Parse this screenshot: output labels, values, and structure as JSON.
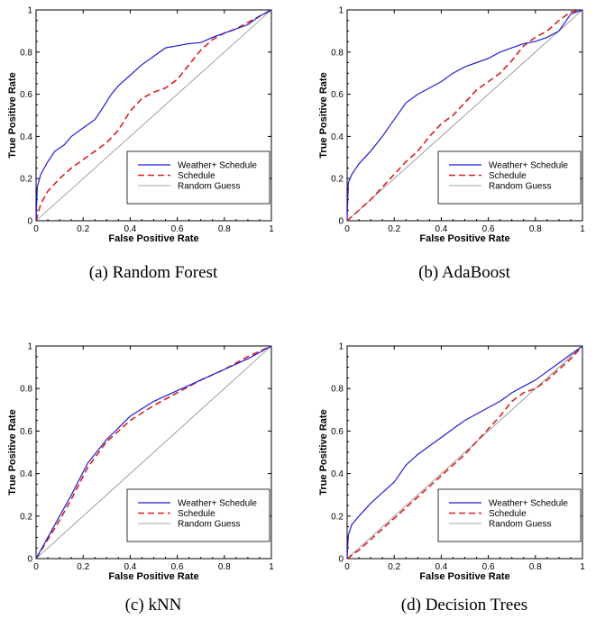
{
  "chart_data": [
    {
      "type": "line",
      "caption": "(a) Random Forest",
      "xlabel": "False Positive Rate",
      "ylabel": "True Positive Rate",
      "xlim": [
        0,
        1
      ],
      "ylim": [
        0,
        1
      ],
      "xticks": [
        "0",
        "0.2",
        "0.4",
        "0.6",
        "0.8",
        "1"
      ],
      "yticks": [
        "0",
        "0.2",
        "0.4",
        "0.6",
        "0.8",
        "1"
      ],
      "grid": false,
      "legend_position": "bottom-right",
      "series": [
        {
          "name": "Weather+ Schedule",
          "color": "#1f1fd6",
          "dash": "solid",
          "x": [
            0,
            0.005,
            0.02,
            0.05,
            0.08,
            0.12,
            0.15,
            0.2,
            0.25,
            0.28,
            0.32,
            0.35,
            0.4,
            0.45,
            0.5,
            0.55,
            0.6,
            0.65,
            0.7,
            0.75,
            0.8,
            0.85,
            0.9,
            0.95,
            1
          ],
          "y": [
            0,
            0.16,
            0.22,
            0.28,
            0.33,
            0.36,
            0.4,
            0.44,
            0.48,
            0.53,
            0.6,
            0.64,
            0.69,
            0.74,
            0.78,
            0.82,
            0.83,
            0.84,
            0.845,
            0.87,
            0.89,
            0.91,
            0.93,
            0.97,
            1
          ]
        },
        {
          "name": "Schedule",
          "color": "#d62020",
          "dash": "dashed",
          "x": [
            0,
            0.02,
            0.05,
            0.1,
            0.15,
            0.2,
            0.25,
            0.3,
            0.35,
            0.4,
            0.45,
            0.5,
            0.55,
            0.6,
            0.65,
            0.7,
            0.75,
            0.8,
            0.85,
            0.9,
            0.95,
            1
          ],
          "y": [
            0,
            0.08,
            0.14,
            0.2,
            0.25,
            0.29,
            0.33,
            0.37,
            0.43,
            0.52,
            0.58,
            0.61,
            0.63,
            0.67,
            0.74,
            0.81,
            0.86,
            0.89,
            0.91,
            0.94,
            0.97,
            1
          ]
        },
        {
          "name": "Random Guess",
          "color": "#888888",
          "dash": "solid",
          "x": [
            0,
            1
          ],
          "y": [
            0,
            1
          ]
        }
      ]
    },
    {
      "type": "line",
      "caption": "(b) AdaBoost",
      "xlabel": "False Positive Rate",
      "ylabel": "True Positive Rate",
      "xlim": [
        0,
        1
      ],
      "ylim": [
        0,
        1
      ],
      "xticks": [
        "0",
        "0.2",
        "0.4",
        "0.6",
        "0.8",
        "1"
      ],
      "yticks": [
        "0",
        "0.2",
        "0.4",
        "0.6",
        "0.8",
        "1"
      ],
      "grid": false,
      "legend_position": "bottom-right",
      "series": [
        {
          "name": "Weather+ Schedule",
          "color": "#1f1fd6",
          "dash": "solid",
          "x": [
            0,
            0.005,
            0.02,
            0.05,
            0.1,
            0.15,
            0.2,
            0.25,
            0.3,
            0.35,
            0.4,
            0.45,
            0.5,
            0.55,
            0.6,
            0.65,
            0.7,
            0.75,
            0.8,
            0.85,
            0.9,
            0.95,
            1
          ],
          "y": [
            0,
            0.18,
            0.22,
            0.27,
            0.33,
            0.4,
            0.48,
            0.56,
            0.6,
            0.63,
            0.66,
            0.7,
            0.73,
            0.75,
            0.77,
            0.8,
            0.82,
            0.84,
            0.85,
            0.87,
            0.9,
            0.98,
            1
          ]
        },
        {
          "name": "Schedule",
          "color": "#d62020",
          "dash": "dashed",
          "x": [
            0,
            0.05,
            0.1,
            0.15,
            0.2,
            0.25,
            0.3,
            0.35,
            0.4,
            0.45,
            0.5,
            0.55,
            0.6,
            0.65,
            0.7,
            0.75,
            0.8,
            0.85,
            0.9,
            0.95,
            1
          ],
          "y": [
            0,
            0.05,
            0.1,
            0.16,
            0.22,
            0.28,
            0.33,
            0.4,
            0.46,
            0.5,
            0.56,
            0.62,
            0.66,
            0.7,
            0.76,
            0.83,
            0.87,
            0.9,
            0.95,
            0.99,
            1
          ]
        },
        {
          "name": "Random Guess",
          "color": "#888888",
          "dash": "solid",
          "x": [
            0,
            1
          ],
          "y": [
            0,
            1
          ]
        }
      ]
    },
    {
      "type": "line",
      "caption": "(c) kNN",
      "xlabel": "False Positive Rate",
      "ylabel": "True Positive Rate",
      "xlim": [
        0,
        1
      ],
      "ylim": [
        0,
        1
      ],
      "xticks": [
        "0",
        "0.2",
        "0.4",
        "0.6",
        "0.8",
        "1"
      ],
      "yticks": [
        "0",
        "0.2",
        "0.4",
        "0.6",
        "0.8",
        "1"
      ],
      "grid": false,
      "legend_position": "bottom-right",
      "series": [
        {
          "name": "Weather+ Schedule",
          "color": "#1f1fd6",
          "dash": "solid",
          "x": [
            0,
            0.05,
            0.1,
            0.15,
            0.22,
            0.3,
            0.4,
            0.5,
            0.6,
            0.7,
            0.8,
            0.9,
            1
          ],
          "y": [
            0,
            0.1,
            0.2,
            0.3,
            0.45,
            0.56,
            0.67,
            0.74,
            0.79,
            0.84,
            0.89,
            0.94,
            1
          ]
        },
        {
          "name": "Schedule",
          "color": "#d62020",
          "dash": "dashed",
          "x": [
            0,
            0.05,
            0.1,
            0.15,
            0.22,
            0.3,
            0.4,
            0.5,
            0.6,
            0.7,
            0.8,
            0.9,
            1
          ],
          "y": [
            0,
            0.09,
            0.18,
            0.28,
            0.43,
            0.55,
            0.65,
            0.72,
            0.78,
            0.84,
            0.89,
            0.95,
            1
          ]
        },
        {
          "name": "Random Guess",
          "color": "#888888",
          "dash": "solid",
          "x": [
            0,
            1
          ],
          "y": [
            0,
            1
          ]
        }
      ]
    },
    {
      "type": "line",
      "caption": "(d) Decision Trees",
      "xlabel": "False Positive Rate",
      "ylabel": "True Positive Rate",
      "xlim": [
        0,
        1
      ],
      "ylim": [
        0,
        1
      ],
      "xticks": [
        "0",
        "0.2",
        "0.4",
        "0.6",
        "0.8",
        "1"
      ],
      "yticks": [
        "0",
        "0.2",
        "0.4",
        "0.6",
        "0.8",
        "1"
      ],
      "grid": false,
      "legend_position": "bottom-right",
      "series": [
        {
          "name": "Weather+ Schedule",
          "color": "#1f1fd6",
          "dash": "solid",
          "x": [
            0,
            0.005,
            0.02,
            0.05,
            0.1,
            0.15,
            0.2,
            0.25,
            0.3,
            0.35,
            0.4,
            0.45,
            0.5,
            0.55,
            0.6,
            0.65,
            0.7,
            0.75,
            0.8,
            0.85,
            0.9,
            0.95,
            1
          ],
          "y": [
            0,
            0.11,
            0.16,
            0.2,
            0.26,
            0.31,
            0.36,
            0.44,
            0.49,
            0.53,
            0.57,
            0.61,
            0.65,
            0.68,
            0.71,
            0.74,
            0.78,
            0.81,
            0.84,
            0.88,
            0.92,
            0.96,
            1
          ]
        },
        {
          "name": "Schedule",
          "color": "#d62020",
          "dash": "dashed",
          "x": [
            0,
            0.05,
            0.1,
            0.15,
            0.2,
            0.25,
            0.3,
            0.35,
            0.4,
            0.45,
            0.5,
            0.55,
            0.6,
            0.65,
            0.7,
            0.75,
            0.8,
            0.85,
            0.9,
            0.95,
            1
          ],
          "y": [
            0,
            0.04,
            0.09,
            0.14,
            0.19,
            0.24,
            0.29,
            0.34,
            0.39,
            0.44,
            0.49,
            0.55,
            0.61,
            0.67,
            0.74,
            0.78,
            0.8,
            0.84,
            0.89,
            0.94,
            1
          ]
        },
        {
          "name": "Random Guess",
          "color": "#888888",
          "dash": "solid",
          "x": [
            0,
            1
          ],
          "y": [
            0,
            1
          ]
        }
      ]
    }
  ]
}
